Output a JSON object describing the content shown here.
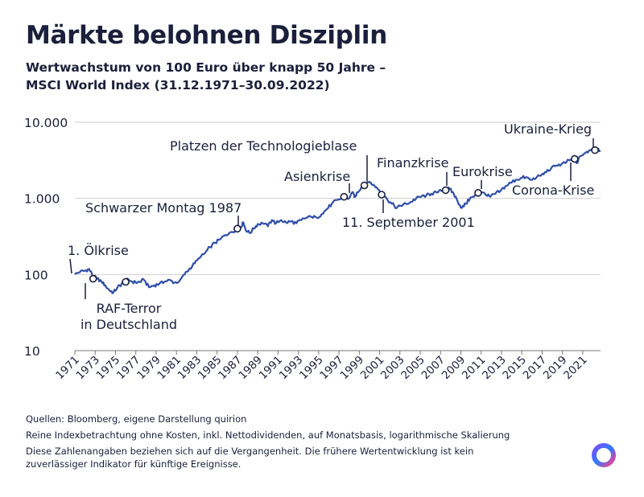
{
  "title": "Märkte belohnen Disziplin",
  "subtitle": {
    "line1": "Wertwachstum von 100 Euro über knapp 50 Jahre –",
    "line2": "MSCI World Index (31.12.1971–30.09.2022)"
  },
  "colors": {
    "line": "#2f4fa8",
    "text": "#1b1f3b",
    "grid": "#cfcfcf",
    "axis": "#777777"
  },
  "chart_data": {
    "type": "line",
    "title": "Märkte belohnen Disziplin",
    "xlabel": "",
    "ylabel": "",
    "yscale": "log",
    "ylim": [
      10,
      10000
    ],
    "xlim": [
      1971,
      2022.75
    ],
    "grid": true,
    "y_ticks": [
      10,
      100,
      1000,
      10000
    ],
    "y_tick_labels": [
      "10",
      "100",
      "1.000",
      "10.000"
    ],
    "x_tick_labels": [
      "1971",
      "1973",
      "1975",
      "1977",
      "1979",
      "1981",
      "1983",
      "1985",
      "1987",
      "1989",
      "1991",
      "1993",
      "1995",
      "1997",
      "1999",
      "2001",
      "2003",
      "2005",
      "2007",
      "2009",
      "2011",
      "2013",
      "2015",
      "2017",
      "2019",
      "2021"
    ],
    "series": [
      {
        "name": "MSCI World Index (100 Euro)",
        "x": [
          1971.0,
          1971.5,
          1972.0,
          1972.4,
          1972.8,
          1973.2,
          1973.6,
          1974.0,
          1974.4,
          1974.8,
          1975.2,
          1975.6,
          1976.0,
          1976.5,
          1977.0,
          1977.4,
          1977.8,
          1978.3,
          1978.8,
          1979.3,
          1979.8,
          1980.3,
          1980.8,
          1981.3,
          1981.8,
          1982.3,
          1982.8,
          1983.3,
          1983.8,
          1984.3,
          1984.8,
          1985.3,
          1985.8,
          1986.3,
          1986.8,
          1987.3,
          1987.6,
          1987.8,
          1988.2,
          1988.6,
          1989.0,
          1989.5,
          1990.0,
          1990.4,
          1990.8,
          1991.3,
          1991.8,
          1992.3,
          1992.8,
          1993.3,
          1993.8,
          1994.3,
          1994.8,
          1995.3,
          1995.8,
          1996.3,
          1996.8,
          1997.3,
          1997.6,
          1997.9,
          1998.3,
          1998.6,
          1998.8,
          1999.2,
          1999.6,
          2000.0,
          2000.3,
          2000.7,
          2001.2,
          2001.7,
          2002.2,
          2002.7,
          2003.1,
          2003.6,
          2004.1,
          2004.6,
          2005.1,
          2005.6,
          2006.1,
          2006.6,
          2007.1,
          2007.5,
          2007.9,
          2008.3,
          2008.7,
          2009.1,
          2009.5,
          2009.9,
          2010.3,
          2010.7,
          2011.1,
          2011.5,
          2011.9,
          2012.4,
          2012.9,
          2013.4,
          2013.9,
          2014.4,
          2014.9,
          2015.4,
          2015.9,
          2016.4,
          2016.9,
          2017.4,
          2017.9,
          2018.4,
          2018.9,
          2019.4,
          2019.9,
          2020.2,
          2020.4,
          2020.8,
          2021.2,
          2021.6,
          2021.95,
          2022.3,
          2022.75
        ],
        "values": [
          100,
          108,
          112,
          118,
          95,
          88,
          82,
          72,
          62,
          58,
          68,
          75,
          85,
          82,
          78,
          80,
          85,
          68,
          72,
          75,
          80,
          85,
          78,
          82,
          100,
          120,
          140,
          165,
          190,
          230,
          260,
          290,
          330,
          360,
          380,
          420,
          480,
          390,
          350,
          400,
          460,
          470,
          430,
          520,
          470,
          520,
          480,
          500,
          470,
          520,
          560,
          570,
          560,
          620,
          720,
          850,
          950,
          1000,
          1080,
          980,
          1200,
          1050,
          1200,
          1400,
          1500,
          1650,
          1500,
          1400,
          1200,
          1000,
          850,
          750,
          800,
          850,
          900,
          1000,
          1050,
          1100,
          1150,
          1200,
          1250,
          1350,
          1320,
          1150,
          900,
          750,
          850,
          1000,
          1050,
          1150,
          1200,
          1100,
          1050,
          1150,
          1250,
          1450,
          1600,
          1750,
          1850,
          1900,
          1750,
          1850,
          2000,
          2200,
          2500,
          2700,
          2800,
          3000,
          3300,
          3400,
          2900,
          3600,
          3900,
          4200,
          4500,
          4700,
          4200
        ]
      }
    ],
    "annotations": [
      {
        "label": "1. Ölkrise",
        "x": 1972.8,
        "y": 88
      },
      {
        "label": "RAF-Terror in Deutschland",
        "label_lines": [
          "RAF-Terror",
          "in Deutschland"
        ],
        "x": 1976.0,
        "y": 80
      },
      {
        "label": "Schwarzer Montag 1987",
        "x": 1987.0,
        "y": 400
      },
      {
        "label": "Asienkrise",
        "x": 1997.5,
        "y": 1050
      },
      {
        "label": "Platzen der Technologieblase",
        "x": 1999.5,
        "y": 1480
      },
      {
        "label": "11. September 2001",
        "x": 2001.2,
        "y": 1120
      },
      {
        "label": "Finanzkrise",
        "x": 2007.5,
        "y": 1280
      },
      {
        "label": "Eurokrise",
        "x": 2010.7,
        "y": 1180
      },
      {
        "label": "Corona-Krise",
        "x": 2020.2,
        "y": 3300
      },
      {
        "label": "Ukraine-Krieg",
        "x": 2022.2,
        "y": 4300
      }
    ]
  },
  "footer": {
    "sources": "Quellen: Bloomberg, eigene Darstellung quirion",
    "note": "Reine Indexbetrachtung ohne Kosten, inkl. Nettodividenden, auf Monatsbasis, logarithmische Skalierung",
    "disclaimer_line1": "Diese Zahlenangaben beziehen sich auf die Vergangenheit. Die frühere Wertentwicklung ist kein",
    "disclaimer_line2": "zuverlässiger Indikator für künftige Ereignisse."
  },
  "logo_icon": "quirion-logo-icon"
}
